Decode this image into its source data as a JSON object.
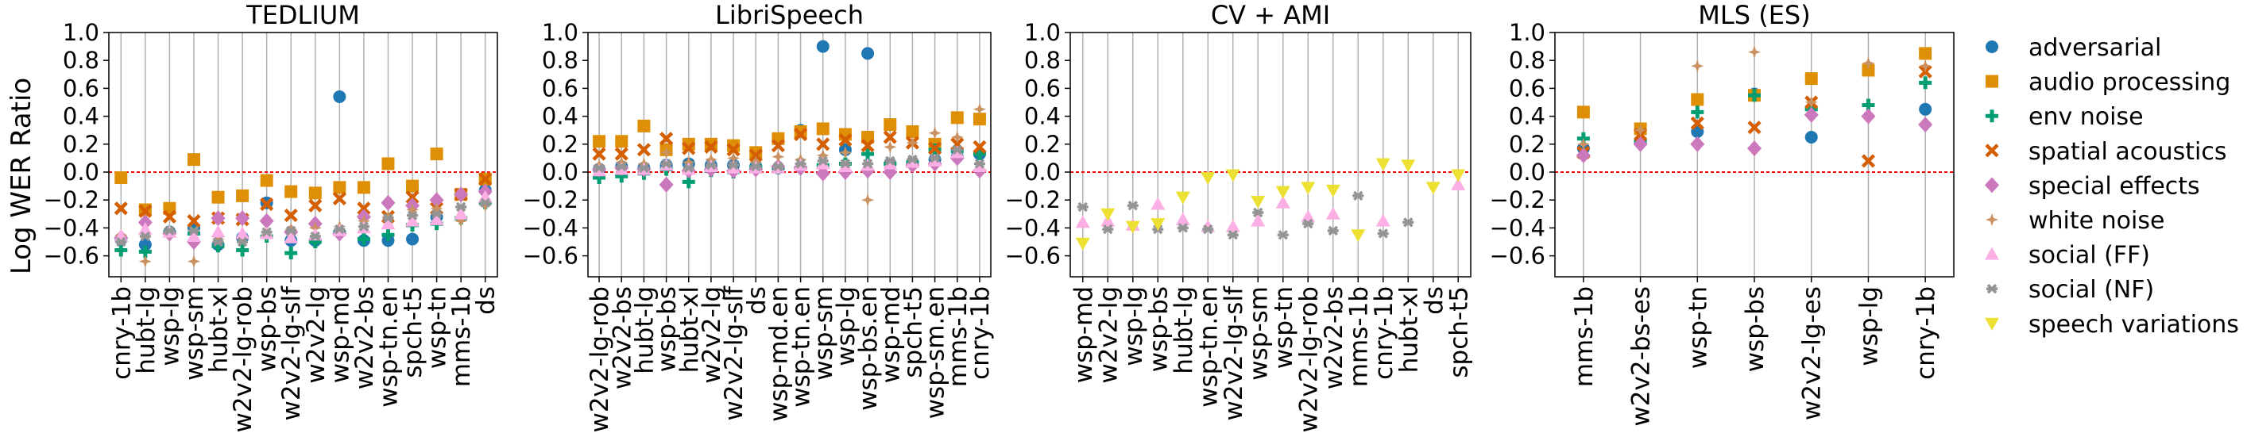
{
  "figure": {
    "ylabel": "Log WER Ratio"
  },
  "colors": {
    "adversarial": "#1f77b4",
    "audio processing": "#de8f05",
    "env noise": "#029e73",
    "spatial acoustics": "#d55e00",
    "special effects": "#cc78bc",
    "white noise": "#ca9161",
    "social (FF)": "#fbafe4",
    "social (NF)": "#949494",
    "speech variations": "#ece133",
    "zero_line": "#ff0000",
    "grid": "#b0b0b0"
  },
  "legend": [
    {
      "label": "adversarial",
      "marker": "circle"
    },
    {
      "label": "audio processing",
      "marker": "square"
    },
    {
      "label": "env noise",
      "marker": "plus"
    },
    {
      "label": "spatial acoustics",
      "marker": "x"
    },
    {
      "label": "special effects",
      "marker": "diamond"
    },
    {
      "label": "white noise",
      "marker": "star"
    },
    {
      "label": "social (FF)",
      "marker": "triangle-up"
    },
    {
      "label": "social (NF)",
      "marker": "asterisk"
    },
    {
      "label": "speech variations",
      "marker": "triangle-down"
    }
  ],
  "chart_data": [
    {
      "type": "scatter",
      "title": "TEDLIUM",
      "ylim": [
        -0.75,
        1.0
      ],
      "yticks": [
        -0.6,
        -0.4,
        -0.2,
        0.0,
        0.2,
        0.4,
        0.6,
        0.8,
        1.0
      ],
      "ytick_labels": [
        "−0.6",
        "−0.4",
        "−0.2",
        "0.0",
        "0.2",
        "0.4",
        "0.6",
        "0.8",
        "1.0"
      ],
      "categories": [
        "cnry-1b",
        "hubt-lg",
        "wsp-lg",
        "wsp-sm",
        "hubt-xl",
        "w2v2-lg-rob",
        "wsp-bs",
        "w2v2-lg-slf",
        "w2v2-lg",
        "wsp-md",
        "w2v2-bs",
        "wsp-tn.en",
        "spch-t5",
        "wsp-tn",
        "mms-1b",
        "ds"
      ],
      "series": [
        {
          "name": "adversarial",
          "values": [
            -0.48,
            -0.52,
            -0.43,
            -0.4,
            -0.52,
            -0.47,
            -0.22,
            -0.49,
            -0.49,
            0.54,
            -0.49,
            -0.49,
            -0.48,
            -0.32,
            -0.16,
            -0.13
          ]
        },
        {
          "name": "audio processing",
          "values": [
            -0.04,
            -0.27,
            -0.26,
            0.09,
            -0.18,
            -0.17,
            -0.06,
            -0.14,
            -0.15,
            -0.11,
            -0.11,
            0.06,
            -0.1,
            0.13,
            -0.16,
            -0.05
          ]
        },
        {
          "name": "env noise",
          "values": [
            -0.56,
            -0.57,
            -0.43,
            -0.44,
            -0.53,
            -0.56,
            -0.46,
            -0.58,
            -0.5,
            -0.43,
            -0.48,
            -0.45,
            -0.38,
            -0.37,
            -0.33,
            -0.22
          ]
        },
        {
          "name": "spatial acoustics",
          "values": [
            -0.26,
            -0.28,
            -0.32,
            -0.35,
            -0.33,
            -0.34,
            -0.23,
            -0.31,
            -0.24,
            -0.19,
            -0.26,
            -0.32,
            -0.18,
            -0.26,
            -0.16,
            -0.05
          ]
        },
        {
          "name": "special effects",
          "values": [
            -0.47,
            -0.36,
            -0.44,
            -0.5,
            -0.33,
            -0.33,
            -0.35,
            -0.43,
            -0.37,
            -0.44,
            -0.32,
            -0.22,
            -0.24,
            -0.2,
            -0.16,
            -0.14
          ]
        },
        {
          "name": "white noise",
          "values": [
            -0.45,
            -0.64,
            -0.44,
            -0.64,
            -0.48,
            -0.47,
            -0.45,
            -0.41,
            -0.4,
            -0.39,
            -0.35,
            -0.32,
            -0.27,
            -0.26,
            -0.35,
            -0.24
          ]
        },
        {
          "name": "social (FF)",
          "values": [
            -0.46,
            -0.41,
            -0.43,
            -0.46,
            -0.43,
            -0.44,
            -0.44,
            -0.47,
            -0.45,
            -0.42,
            -0.4,
            -0.37,
            -0.35,
            -0.34,
            -0.3,
            -0.18
          ]
        },
        {
          "name": "social (NF)",
          "values": [
            -0.5,
            -0.46,
            -0.42,
            -0.42,
            -0.5,
            -0.5,
            -0.43,
            -0.42,
            -0.46,
            -0.41,
            -0.39,
            -0.33,
            -0.31,
            -0.3,
            -0.25,
            -0.22
          ]
        },
        {
          "name": "speech variations",
          "values": [
            null,
            null,
            null,
            null,
            null,
            null,
            null,
            null,
            null,
            null,
            null,
            null,
            null,
            null,
            null,
            null
          ]
        }
      ]
    },
    {
      "type": "scatter",
      "title": "LibriSpeech",
      "ylim": [
        -0.75,
        1.0
      ],
      "yticks": [
        -0.6,
        -0.4,
        -0.2,
        0.0,
        0.2,
        0.4,
        0.6,
        0.8,
        1.0
      ],
      "ytick_labels": [
        "−0.6",
        "−0.4",
        "−0.2",
        "0.0",
        "0.2",
        "0.4",
        "0.6",
        "0.8",
        "1.0"
      ],
      "categories": [
        "w2v2-lg-rob",
        "w2v2-bs",
        "hubt-lg",
        "wsp-bs",
        "hubt-xl",
        "w2v2-lg",
        "w2v2-lg-slf",
        "ds",
        "wsp-md.en",
        "wsp-tn.en",
        "wsp-sm",
        "wsp-lg",
        "wsp-bs.en",
        "wsp-md",
        "spch-t5",
        "wsp-sm.en",
        "mms-1b",
        "cnry-1b"
      ],
      "series": [
        {
          "name": "adversarial",
          "values": [
            0.02,
            0.04,
            0.03,
            0.05,
            0.06,
            0.05,
            0.05,
            0.04,
            0.03,
            0.3,
            0.9,
            0.16,
            0.85,
            0.06,
            0.07,
            0.09,
            0.11,
            0.13
          ]
        },
        {
          "name": "audio processing",
          "values": [
            0.22,
            0.22,
            0.33,
            0.16,
            0.2,
            0.2,
            0.19,
            0.14,
            0.24,
            0.29,
            0.31,
            0.27,
            0.25,
            0.34,
            0.29,
            0.2,
            0.39,
            0.38
          ]
        },
        {
          "name": "env noise",
          "values": [
            -0.04,
            -0.03,
            -0.01,
            0.02,
            -0.07,
            0.01,
            0.0,
            0.04,
            0.03,
            0.03,
            0.05,
            0.06,
            0.13,
            0.06,
            0.07,
            0.16,
            0.15,
            0.13
          ]
        },
        {
          "name": "spatial acoustics",
          "values": [
            0.13,
            0.13,
            0.16,
            0.24,
            0.17,
            0.18,
            0.16,
            0.12,
            0.19,
            0.27,
            0.2,
            0.23,
            0.19,
            0.25,
            0.21,
            0.17,
            0.2,
            0.18
          ]
        },
        {
          "name": "special effects",
          "values": [
            0.02,
            0.03,
            0.02,
            -0.09,
            0.01,
            0.02,
            0.01,
            0.02,
            0.04,
            0.03,
            -0.01,
            0.0,
            0.01,
            0.0,
            0.05,
            0.06,
            0.1,
            0.01
          ]
        },
        {
          "name": "white noise",
          "values": [
            0.05,
            0.07,
            0.06,
            0.14,
            0.07,
            0.09,
            0.1,
            0.07,
            0.11,
            0.09,
            0.12,
            0.14,
            -0.2,
            0.18,
            0.21,
            0.28,
            0.25,
            0.45
          ]
        },
        {
          "name": "social (FF)",
          "values": [
            0.01,
            0.02,
            0.02,
            0.05,
            0.02,
            0.04,
            0.03,
            0.03,
            0.03,
            0.05,
            0.06,
            0.04,
            0.05,
            0.06,
            0.07,
            0.08,
            0.14,
            0.04
          ]
        },
        {
          "name": "social (NF)",
          "values": [
            0.03,
            0.04,
            0.03,
            0.06,
            0.03,
            0.05,
            0.05,
            0.04,
            0.04,
            0.06,
            0.08,
            0.06,
            0.06,
            0.08,
            0.09,
            0.1,
            0.16,
            0.06
          ]
        },
        {
          "name": "speech variations",
          "values": [
            null,
            null,
            null,
            null,
            null,
            null,
            null,
            null,
            null,
            null,
            null,
            null,
            null,
            null,
            null,
            null,
            null,
            null
          ]
        }
      ]
    },
    {
      "type": "scatter",
      "title": "CV + AMI",
      "ylim": [
        -0.75,
        1.0
      ],
      "yticks": [
        -0.6,
        -0.4,
        -0.2,
        0.0,
        0.2,
        0.4,
        0.6,
        0.8,
        1.0
      ],
      "ytick_labels": [
        "−0.6",
        "−0.4",
        "−0.2",
        "0.0",
        "0.2",
        "0.4",
        "0.6",
        "0.8",
        "1.0"
      ],
      "categories": [
        "wsp-md",
        "w2v2-lg",
        "wsp-lg",
        "wsp-bs",
        "hubt-lg",
        "wsp-tn.en",
        "w2v2-lg-slf",
        "wsp-sm",
        "wsp-tn",
        "w2v2-lg-rob",
        "w2v2-bs",
        "mms-1b",
        "cnry-1b",
        "hubt-xl",
        "ds",
        "spch-t5"
      ],
      "series": [
        {
          "name": "adversarial",
          "values": [
            null,
            null,
            null,
            null,
            null,
            null,
            null,
            null,
            null,
            null,
            null,
            null,
            null,
            null,
            null,
            null
          ]
        },
        {
          "name": "audio processing",
          "values": [
            null,
            null,
            null,
            null,
            null,
            null,
            null,
            null,
            null,
            null,
            null,
            null,
            null,
            null,
            null,
            null
          ]
        },
        {
          "name": "env noise",
          "values": [
            null,
            null,
            null,
            null,
            null,
            null,
            null,
            null,
            null,
            null,
            null,
            null,
            null,
            null,
            null,
            null
          ]
        },
        {
          "name": "spatial acoustics",
          "values": [
            null,
            null,
            null,
            null,
            null,
            null,
            null,
            null,
            null,
            null,
            null,
            null,
            null,
            null,
            null,
            null
          ]
        },
        {
          "name": "special effects",
          "values": [
            null,
            null,
            null,
            null,
            null,
            null,
            null,
            null,
            null,
            null,
            null,
            null,
            null,
            null,
            null,
            null
          ]
        },
        {
          "name": "white noise",
          "values": [
            null,
            null,
            null,
            null,
            null,
            null,
            null,
            null,
            null,
            null,
            null,
            null,
            null,
            null,
            null,
            null
          ]
        },
        {
          "name": "social (FF)",
          "values": [
            -0.36,
            -0.35,
            -0.38,
            -0.23,
            -0.34,
            -0.39,
            -0.39,
            -0.35,
            -0.22,
            -0.32,
            -0.3,
            null,
            -0.35,
            null,
            null,
            -0.09
          ]
        },
        {
          "name": "social (NF)",
          "values": [
            -0.25,
            -0.41,
            -0.24,
            -0.41,
            -0.4,
            -0.41,
            -0.45,
            -0.29,
            -0.45,
            -0.37,
            -0.42,
            -0.17,
            -0.44,
            -0.36,
            null,
            null
          ]
        },
        {
          "name": "speech variations",
          "values": [
            -0.51,
            -0.3,
            -0.39,
            -0.37,
            -0.18,
            -0.04,
            -0.02,
            -0.21,
            -0.14,
            -0.11,
            -0.13,
            -0.45,
            0.06,
            0.05,
            -0.11,
            -0.02
          ]
        }
      ]
    },
    {
      "type": "scatter",
      "title": "MLS (ES)",
      "ylim": [
        -0.75,
        1.0
      ],
      "yticks": [
        -0.6,
        -0.4,
        -0.2,
        0.0,
        0.2,
        0.4,
        0.6,
        0.8,
        1.0
      ],
      "ytick_labels": [
        "−0.6",
        "−0.4",
        "−0.2",
        "0.0",
        "0.2",
        "0.4",
        "0.6",
        "0.8",
        "1.0"
      ],
      "categories": [
        "mms-1b",
        "w2v2-bs-es",
        "wsp-tn",
        "wsp-bs",
        "w2v2-lg-es",
        "wsp-lg",
        "cnry-1b"
      ],
      "series": [
        {
          "name": "adversarial",
          "values": [
            0.17,
            0.22,
            0.29,
            0.56,
            0.25,
            0.74,
            0.45
          ]
        },
        {
          "name": "audio processing",
          "values": [
            0.43,
            0.31,
            0.52,
            0.55,
            0.67,
            0.73,
            0.85
          ]
        },
        {
          "name": "env noise",
          "values": [
            0.24,
            0.22,
            0.43,
            0.55,
            0.45,
            0.48,
            0.64
          ]
        },
        {
          "name": "spatial acoustics",
          "values": [
            0.14,
            0.27,
            0.35,
            0.32,
            0.5,
            0.08,
            0.72
          ]
        },
        {
          "name": "special effects",
          "values": [
            0.12,
            0.2,
            0.2,
            0.17,
            0.41,
            0.4,
            0.34
          ]
        },
        {
          "name": "white noise",
          "values": [
            0.2,
            0.3,
            0.76,
            0.86,
            0.5,
            0.78,
            0.76
          ]
        },
        {
          "name": "social (FF)",
          "values": [
            null,
            null,
            null,
            null,
            null,
            null,
            null
          ]
        },
        {
          "name": "social (NF)",
          "values": [
            null,
            null,
            null,
            null,
            null,
            null,
            null
          ]
        },
        {
          "name": "speech variations",
          "values": [
            null,
            null,
            null,
            null,
            null,
            null,
            null
          ]
        }
      ]
    }
  ]
}
